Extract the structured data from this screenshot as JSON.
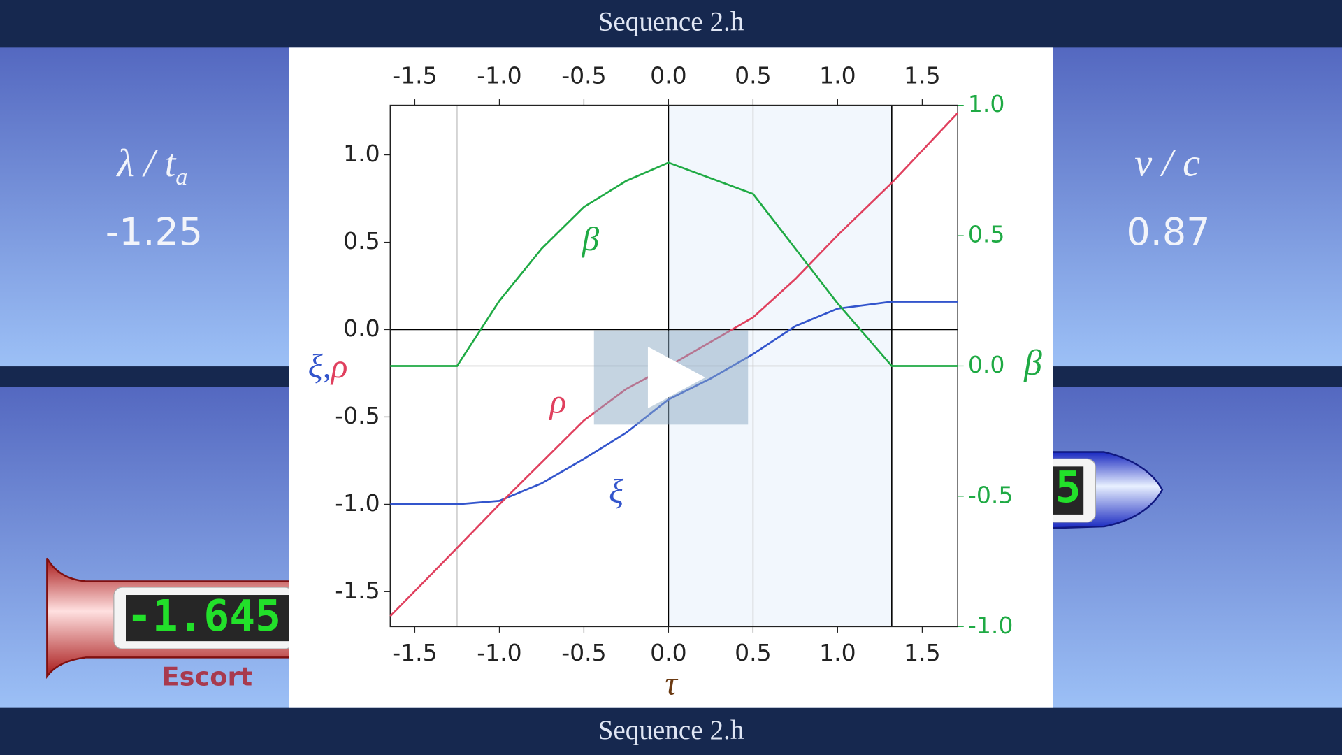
{
  "header": {
    "title": "Sequence 2.h"
  },
  "footer": {
    "title": "Sequence 2.h"
  },
  "left_panel": {
    "label": "λ / t",
    "label_sub": "a",
    "value": -1.25
  },
  "right_panel": {
    "label": "v / c",
    "value": 0.87
  },
  "escort": {
    "name": "Escort",
    "clock": -1.645
  },
  "traveler": {
    "clock": 5
  },
  "chart_data": {
    "type": "line",
    "x": [
      -1.645,
      -1.25,
      -1.0,
      -0.75,
      -0.5,
      -0.25,
      0.0,
      0.25,
      0.5,
      0.75,
      1.0,
      1.32,
      1.71
    ],
    "series": [
      {
        "name": "ξ",
        "color": "#3355cc",
        "values": [
          -1.0,
          -1.0,
          -0.98,
          -0.88,
          -0.74,
          -0.59,
          -0.4,
          -0.28,
          -0.14,
          0.02,
          0.12,
          0.16,
          0.16
        ]
      },
      {
        "name": "ρ",
        "color": "#e0405e",
        "values": [
          -1.64,
          -1.25,
          -1.0,
          -0.76,
          -0.52,
          -0.34,
          -0.21,
          -0.07,
          0.07,
          0.29,
          0.54,
          0.84,
          1.24
        ]
      },
      {
        "name": "β",
        "color": "#1faa44",
        "axis": "y2",
        "values": [
          0,
          0,
          0.25,
          0.45,
          0.61,
          0.71,
          0.78,
          0.72,
          0.66,
          0.45,
          0.24,
          0,
          0
        ]
      }
    ],
    "xlabel": "τ",
    "ylabel_parts": [
      "ξ",
      ",",
      "ρ"
    ],
    "y2label": "β",
    "xlim": [
      -1.645,
      1.71
    ],
    "ylim": [
      -1.7,
      1.284
    ],
    "y2lim": [
      -1,
      1
    ],
    "xticks": [
      -1.5,
      {
        "value": -1,
        "label": "-1.0"
      },
      -0.5,
      {
        "value": 0,
        "label": "0.0"
      },
      0.5,
      {
        "value": 1,
        "label": "1.0"
      },
      1.5
    ],
    "yticks": [
      -1.5,
      {
        "value": -1,
        "label": "-1.0"
      },
      -0.5,
      {
        "value": 0,
        "label": "0.0"
      },
      0.5,
      {
        "value": 1,
        "label": "1.0"
      }
    ],
    "y2ticks": [
      {
        "value": -1,
        "label": "-1.0"
      },
      -0.5,
      {
        "value": 0,
        "label": "0.0"
      },
      0.5,
      {
        "value": 1,
        "label": "1.0"
      }
    ],
    "shaded": [
      0,
      1.32
    ],
    "vlines": [
      {
        "x": -1.25,
        "color": "#cccccc"
      },
      {
        "x": 0.5,
        "color": "#cccccc"
      },
      {
        "x": 0,
        "color": "#000000"
      },
      {
        "x": 1.32,
        "color": "#000000"
      }
    ],
    "hlines": [
      {
        "y": 0,
        "color": "#000000"
      }
    ],
    "h2lines": [
      {
        "y": 0,
        "color": "#cccccc"
      }
    ]
  }
}
